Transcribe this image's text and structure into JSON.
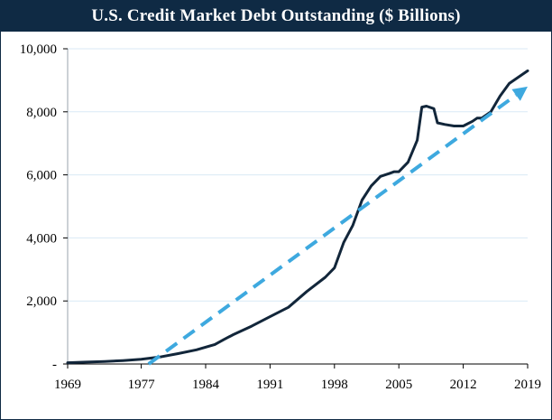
{
  "chart_data": {
    "type": "line",
    "title": "U.S. Credit Market Debt Outstanding ($ Billions)",
    "xlabel": "",
    "ylabel": "",
    "xlim": [
      1969,
      2019
    ],
    "ylim": [
      0,
      10000
    ],
    "x_ticks": [
      1969,
      1977,
      1984,
      1991,
      1998,
      2005,
      2012,
      2019
    ],
    "x_tick_labels": [
      "1969",
      "1977",
      "1984",
      "1991",
      "1998",
      "2005",
      "2012",
      "2019"
    ],
    "y_ticks": [
      0,
      2000,
      4000,
      6000,
      8000,
      10000
    ],
    "y_tick_labels": [
      "-",
      "2,000",
      "4,000",
      "6,000",
      "8,000",
      "10,000"
    ],
    "grid": "horizontal",
    "legend": "none",
    "series": [
      {
        "style": "solid",
        "color": "#12263a",
        "x": [
          1969,
          1971,
          1973,
          1975,
          1977,
          1979,
          1981,
          1983,
          1985,
          1986,
          1987,
          1989,
          1991,
          1993,
          1995,
          1997,
          1998,
          1999,
          2000,
          2001,
          2002,
          2003,
          2004,
          2004.5,
          2005,
          2006,
          2007,
          2007.5,
          2008,
          2008.8,
          2009.2,
          2010,
          2011,
          2012,
          2013,
          2013.5,
          2014,
          2015,
          2016,
          2017,
          2018,
          2019
        ],
        "y": [
          40,
          60,
          80,
          110,
          150,
          220,
          330,
          450,
          620,
          780,
          930,
          1200,
          1500,
          1800,
          2300,
          2750,
          3050,
          3850,
          4400,
          5200,
          5650,
          5950,
          6050,
          6100,
          6100,
          6400,
          7100,
          8150,
          8180,
          8100,
          7650,
          7600,
          7550,
          7550,
          7700,
          7800,
          7800,
          8000,
          8500,
          8900,
          9100,
          9300
        ]
      },
      {
        "style": "dashed",
        "color": "#3ea9df",
        "x": [
          1977.8,
          2019
        ],
        "y": [
          0,
          8800
        ]
      }
    ]
  }
}
